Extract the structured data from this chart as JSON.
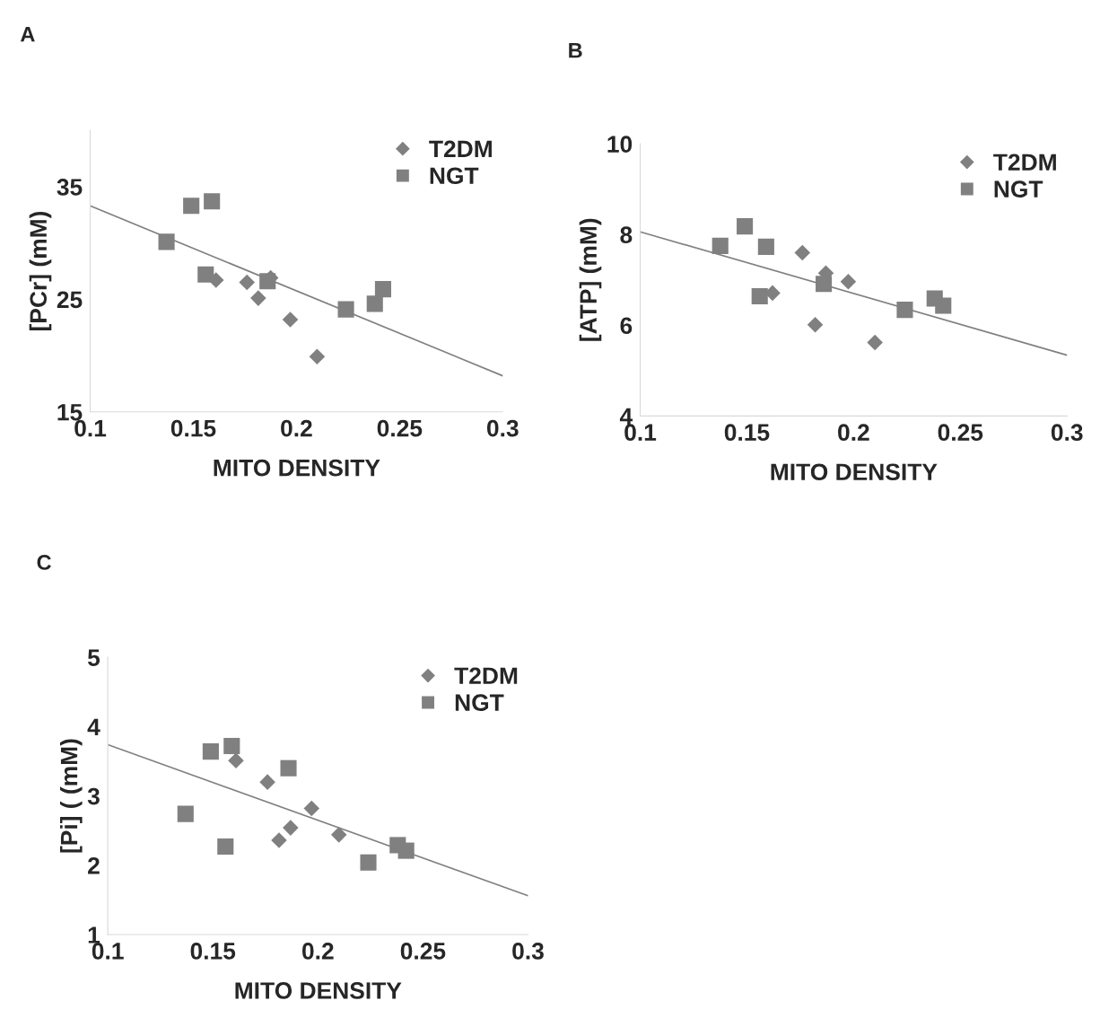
{
  "chart_data": [
    {
      "type": "scatter",
      "title": "A",
      "xlabel": "MITO DENSITY",
      "ylabel": "[PCr] (mM)",
      "xlim": [
        0.1,
        0.3
      ],
      "ylim": [
        15,
        40
      ],
      "xticks": [
        0.1,
        0.15,
        0.2,
        0.25,
        0.3
      ],
      "yticks": [
        15,
        25,
        35
      ],
      "grid": false,
      "legend": "top right",
      "series": [
        {
          "name": "T2DM",
          "marker": "diamond",
          "color": "#808080",
          "x": [
            0.161,
            0.176,
            0.1815,
            0.1875,
            0.197,
            0.21
          ],
          "values": [
            26.7,
            26.5,
            25.1,
            26.9,
            23.2,
            19.9
          ]
        },
        {
          "name": "NGT",
          "marker": "square",
          "color": "#808080",
          "x": [
            0.137,
            0.149,
            0.159,
            0.156,
            0.186,
            0.224,
            0.238,
            0.242
          ],
          "values": [
            30.1,
            33.3,
            33.7,
            27.2,
            26.6,
            24.1,
            24.6,
            25.9
          ]
        },
        {
          "type": "line",
          "marker": "none",
          "color": "#808080",
          "x": [
            0.1,
            0.3
          ],
          "values": [
            33.3,
            18.2
          ]
        }
      ]
    },
    {
      "type": "scatter",
      "title": "B",
      "xlabel": "MITO DENSITY",
      "ylabel": "[ATP] (mM)",
      "xlim": [
        0.1,
        0.3
      ],
      "ylim": [
        4,
        10
      ],
      "xticks": [
        0.1,
        0.15,
        0.2,
        0.25,
        0.3
      ],
      "yticks": [
        4,
        6,
        8,
        10
      ],
      "grid": false,
      "legend": "top right",
      "series": [
        {
          "name": "T2DM",
          "marker": "diamond",
          "color": "#808080",
          "x": [
            0.162,
            0.176,
            0.182,
            0.187,
            0.1975,
            0.21
          ],
          "values": [
            6.71,
            7.6,
            6.01,
            7.15,
            6.96,
            5.62
          ]
        },
        {
          "name": "NGT",
          "marker": "square",
          "color": "#808080",
          "x": [
            0.1375,
            0.149,
            0.159,
            0.156,
            0.186,
            0.224,
            0.238,
            0.242
          ],
          "values": [
            7.75,
            8.18,
            7.73,
            6.64,
            6.91,
            6.34,
            6.59,
            6.43
          ]
        },
        {
          "type": "line",
          "marker": "none",
          "color": "#808080",
          "x": [
            0.1,
            0.3
          ],
          "values": [
            8.06,
            5.34
          ]
        }
      ]
    },
    {
      "type": "scatter",
      "title": "C",
      "xlabel": "MITO DENSITY",
      "ylabel": "[Pi] ( (mM)",
      "xlim": [
        0.1,
        0.3
      ],
      "ylim": [
        1,
        5
      ],
      "xticks": [
        0.1,
        0.15,
        0.2,
        0.25,
        0.3
      ],
      "yticks": [
        1,
        2,
        3,
        4,
        5
      ],
      "grid": false,
      "legend": "top right",
      "series": [
        {
          "name": "T2DM",
          "marker": "diamond",
          "color": "#808080",
          "x": [
            0.161,
            0.176,
            0.1815,
            0.187,
            0.197,
            0.21
          ],
          "values": [
            3.51,
            3.2,
            2.36,
            2.54,
            2.82,
            2.44
          ]
        },
        {
          "name": "NGT",
          "marker": "square",
          "color": "#808080",
          "x": [
            0.137,
            0.149,
            0.159,
            0.156,
            0.186,
            0.224,
            0.238,
            0.242
          ],
          "values": [
            2.74,
            3.64,
            3.72,
            2.27,
            3.4,
            2.04,
            2.29,
            2.21
          ]
        },
        {
          "type": "line",
          "marker": "none",
          "color": "#808080",
          "x": [
            0.1,
            0.3
          ],
          "values": [
            3.74,
            1.56
          ]
        }
      ]
    }
  ]
}
